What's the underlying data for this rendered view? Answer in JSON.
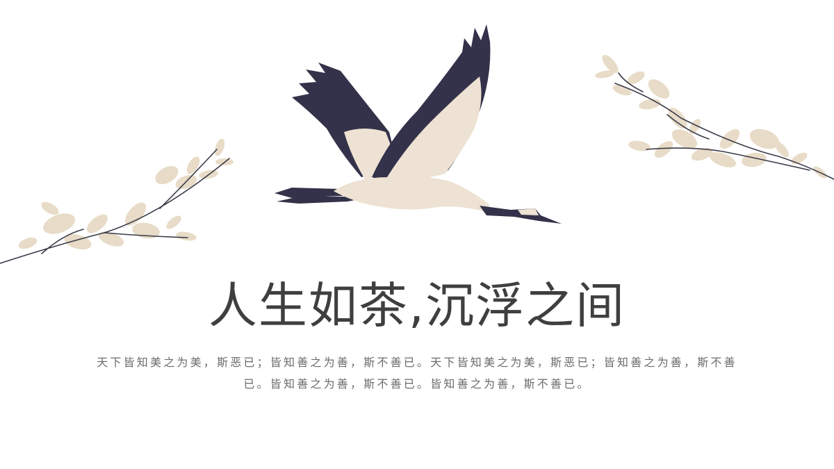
{
  "slide": {
    "title": "人生如茶,沉浮之间",
    "body": "天下皆知美之为美，斯恶已；皆知善之为善，斯不善已。天下皆知美之为美，斯恶已；皆知善之为善，斯不善已。皆知善之为善，斯不善已。皆知善之为善，斯不善已。"
  },
  "colors": {
    "title": "#3f3f3f",
    "body": "#6b6b6b",
    "crane_dark": "#34324a",
    "crane_light": "#ede2d3",
    "leaf": "#e8dcc8",
    "branch": "#3a3a48"
  },
  "illustrations": [
    "crane-illustration",
    "branch-left-illustration",
    "branch-right-illustration"
  ]
}
